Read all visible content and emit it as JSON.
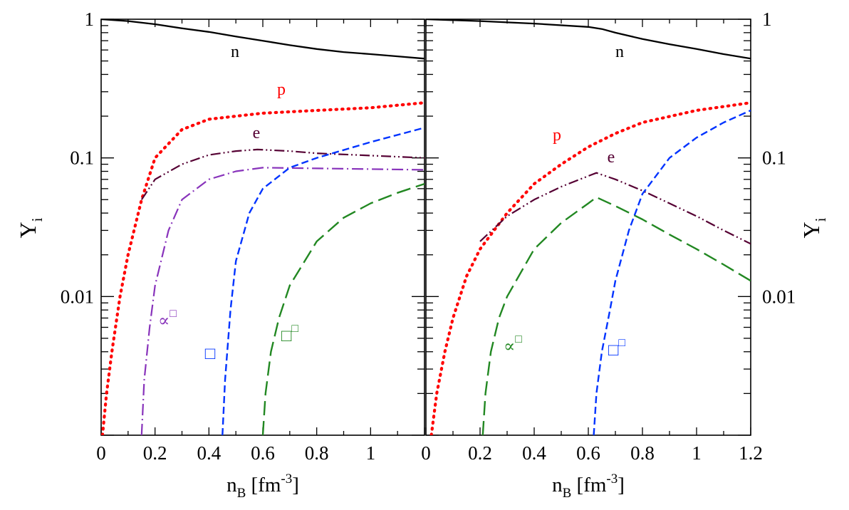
{
  "chart_data": [
    {
      "type": "line",
      "panel": "left",
      "xlabel": "n",
      "xlabel_sub": "B",
      "xlabel_unit_pre": "[fm",
      "xlabel_unit_sup": "-3",
      "xlabel_unit_post": "]",
      "ylabel": "Y",
      "ylabel_sub": "i",
      "yscale": "log",
      "xlim": [
        0,
        1.2
      ],
      "ylim": [
        0.001,
        1
      ],
      "x_tick_labels": [
        "0",
        "0.2",
        "0.4",
        "0.6",
        "0.8",
        "1"
      ],
      "y_tick_labels": [
        "1",
        "0.1",
        "0.01"
      ],
      "series": [
        {
          "name": "n",
          "label": "n",
          "color": "#000000",
          "style": "solid",
          "x": [
            0,
            0.1,
            0.2,
            0.3,
            0.4,
            0.5,
            0.6,
            0.7,
            0.8,
            0.9,
            1.0,
            1.1,
            1.2
          ],
          "y": [
            1.0,
            0.97,
            0.92,
            0.86,
            0.81,
            0.75,
            0.7,
            0.65,
            0.61,
            0.58,
            0.56,
            0.54,
            0.52
          ]
        },
        {
          "name": "p",
          "label": "p",
          "color": "#ff0000",
          "style": "dotted",
          "x": [
            0.005,
            0.02,
            0.04,
            0.07,
            0.1,
            0.15,
            0.2,
            0.3,
            0.4,
            0.5,
            0.6,
            0.8,
            1.0,
            1.2
          ],
          "y": [
            0.001,
            0.002,
            0.004,
            0.01,
            0.02,
            0.05,
            0.1,
            0.16,
            0.19,
            0.2,
            0.21,
            0.22,
            0.23,
            0.25
          ]
        },
        {
          "name": "e",
          "label": "e",
          "color": "#550033",
          "style": "dash-dot-dot",
          "x": [
            0.15,
            0.2,
            0.3,
            0.4,
            0.5,
            0.58,
            0.7,
            0.8,
            1.0,
            1.2
          ],
          "y": [
            0.05,
            0.07,
            0.09,
            0.105,
            0.112,
            0.115,
            0.112,
            0.108,
            0.104,
            0.1
          ]
        },
        {
          "name": "mu",
          "label": "∝",
          "label_sup": "□",
          "color": "#8833bb",
          "style": "dash-dot",
          "x": [
            0.15,
            0.16,
            0.18,
            0.2,
            0.25,
            0.3,
            0.4,
            0.5,
            0.6,
            0.8,
            1.0,
            1.2
          ],
          "y": [
            0.001,
            0.0025,
            0.006,
            0.012,
            0.03,
            0.05,
            0.07,
            0.08,
            0.085,
            0.084,
            0.083,
            0.082
          ]
        },
        {
          "name": "sigma-blue",
          "label": "□",
          "label_sup": "",
          "color": "#0033ff",
          "style": "dashed",
          "x": [
            0.45,
            0.46,
            0.48,
            0.5,
            0.55,
            0.6,
            0.7,
            0.8,
            1.0,
            1.2
          ],
          "y": [
            0.001,
            0.0025,
            0.008,
            0.018,
            0.04,
            0.06,
            0.085,
            0.1,
            0.13,
            0.165
          ]
        },
        {
          "name": "sigma-green",
          "label": "□",
          "label_sup": "□",
          "color": "#228822",
          "style": "long-dashed",
          "x": [
            0.6,
            0.61,
            0.63,
            0.66,
            0.7,
            0.8,
            0.9,
            1.0,
            1.1,
            1.2
          ],
          "y": [
            0.001,
            0.002,
            0.004,
            0.007,
            0.012,
            0.025,
            0.037,
            0.047,
            0.056,
            0.065
          ]
        }
      ]
    },
    {
      "type": "line",
      "panel": "right",
      "xlabel": "n",
      "xlabel_sub": "B",
      "xlabel_unit_pre": "[fm",
      "xlabel_unit_sup": "-3",
      "xlabel_unit_post": "]",
      "ylabel": "Y",
      "ylabel_sub": "i",
      "yscale": "log",
      "xlim": [
        0,
        1.2
      ],
      "ylim": [
        0.001,
        1
      ],
      "x_tick_labels": [
        "0",
        "0.2",
        "0.4",
        "0.6",
        "0.8",
        "1",
        "1.2"
      ],
      "y_tick_labels": [
        "1",
        "0.1",
        "0.01"
      ],
      "series": [
        {
          "name": "n",
          "label": "n",
          "color": "#000000",
          "style": "solid",
          "x": [
            0,
            0.2,
            0.4,
            0.6,
            0.65,
            0.7,
            0.8,
            0.9,
            1.0,
            1.1,
            1.2
          ],
          "y": [
            1.0,
            0.97,
            0.93,
            0.88,
            0.85,
            0.8,
            0.72,
            0.66,
            0.61,
            0.56,
            0.52
          ]
        },
        {
          "name": "p",
          "label": "p",
          "color": "#ff0000",
          "style": "dotted",
          "x": [
            0.02,
            0.04,
            0.07,
            0.1,
            0.15,
            0.2,
            0.3,
            0.4,
            0.5,
            0.6,
            0.7,
            0.8,
            1.0,
            1.2
          ],
          "y": [
            0.001,
            0.002,
            0.004,
            0.007,
            0.014,
            0.022,
            0.04,
            0.065,
            0.09,
            0.12,
            0.15,
            0.18,
            0.22,
            0.25
          ]
        },
        {
          "name": "e",
          "label": "e",
          "color": "#550033",
          "style": "dash-dot-dot",
          "x": [
            0.2,
            0.3,
            0.4,
            0.5,
            0.6,
            0.63,
            0.7,
            0.8,
            0.9,
            1.0,
            1.1,
            1.2
          ],
          "y": [
            0.025,
            0.038,
            0.05,
            0.062,
            0.074,
            0.078,
            0.07,
            0.058,
            0.047,
            0.038,
            0.03,
            0.024
          ]
        },
        {
          "name": "mu",
          "label": "∝",
          "label_sup": "□",
          "color": "#228822",
          "style": "long-dashed",
          "x": [
            0.21,
            0.22,
            0.24,
            0.27,
            0.3,
            0.4,
            0.5,
            0.6,
            0.63,
            0.7,
            0.8,
            0.9,
            1.0,
            1.1,
            1.2
          ],
          "y": [
            0.001,
            0.002,
            0.004,
            0.007,
            0.01,
            0.022,
            0.034,
            0.047,
            0.052,
            0.045,
            0.036,
            0.028,
            0.022,
            0.017,
            0.013
          ]
        },
        {
          "name": "sigma-blue",
          "label": "□",
          "label_sup": "□",
          "color": "#0033ff",
          "style": "dashed",
          "x": [
            0.62,
            0.63,
            0.65,
            0.68,
            0.7,
            0.75,
            0.8,
            0.9,
            1.0,
            1.1,
            1.2
          ],
          "y": [
            0.001,
            0.002,
            0.004,
            0.008,
            0.013,
            0.03,
            0.055,
            0.1,
            0.14,
            0.18,
            0.22
          ]
        }
      ]
    }
  ]
}
